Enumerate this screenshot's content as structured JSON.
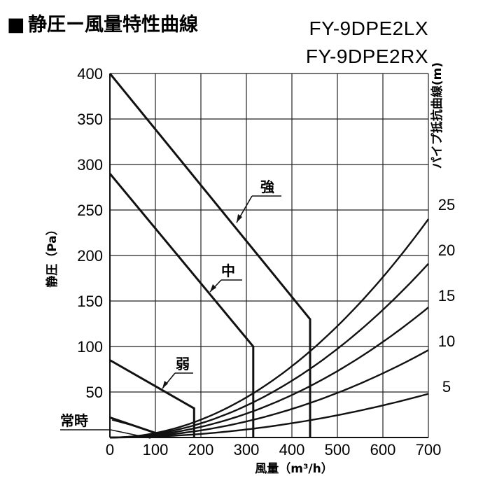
{
  "chart_data": {
    "type": "line",
    "title": "静圧ー風量特性曲線",
    "title_marker": "■",
    "models": [
      "FY-9DPE2LX",
      "FY-9DPE2RX"
    ],
    "xlabel": "風量（m³/h）",
    "ylabel": "静圧（Pa）",
    "y2label": "パイプ抵抗曲線(m)",
    "xlim": [
      0,
      700
    ],
    "ylim": [
      0,
      400
    ],
    "x_ticks": [
      "0",
      "100",
      "200",
      "300",
      "400",
      "500",
      "600",
      "700"
    ],
    "y_ticks": [
      "0",
      "50",
      "100",
      "150",
      "200",
      "250",
      "300",
      "350",
      "400"
    ],
    "y2_ticks": [
      "5",
      "10",
      "15",
      "20",
      "25"
    ],
    "grid": true,
    "series": [
      {
        "name": "強",
        "points": [
          [
            0,
            400
          ],
          [
            440,
            130
          ],
          [
            440,
            0
          ]
        ]
      },
      {
        "name": "中",
        "points": [
          [
            0,
            290
          ],
          [
            315,
            100
          ],
          [
            315,
            0
          ]
        ]
      },
      {
        "name": "弱",
        "points": [
          [
            0,
            85
          ],
          [
            185,
            32
          ],
          [
            185,
            0
          ]
        ]
      },
      {
        "name": "常時",
        "points": [
          [
            0,
            22
          ],
          [
            100,
            5
          ],
          [
            100,
            0
          ]
        ]
      }
    ],
    "pipe_resistance_curves": [
      {
        "value_at_700": 48
      },
      {
        "value_at_700": 96
      },
      {
        "value_at_700": 143
      },
      {
        "value_at_700": 191
      },
      {
        "value_at_700": 240
      }
    ]
  }
}
